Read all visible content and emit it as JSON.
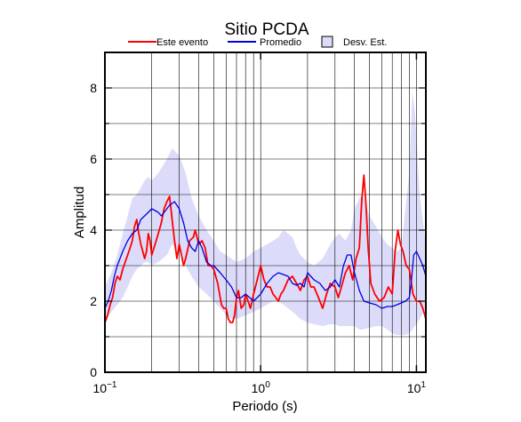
{
  "chart_data": {
    "type": "line",
    "title": "Sitio PCDA",
    "xlabel": "Periodo (s)",
    "ylabel": "Amplitud",
    "xscale": "log",
    "xlim": [
      0.1,
      11.5
    ],
    "ylim": [
      0,
      9
    ],
    "grid": true,
    "legend_position": "top",
    "x_ticks": [
      {
        "value": 0.1,
        "base": "10",
        "exp": "−1"
      },
      {
        "value": 1,
        "base": "10",
        "exp": "0"
      },
      {
        "value": 10,
        "base": "10",
        "exp": "1"
      }
    ],
    "y_ticks": [
      {
        "value": 0,
        "label": "0"
      },
      {
        "value": 2,
        "label": "2"
      },
      {
        "value": 4,
        "label": "4"
      },
      {
        "value": 6,
        "label": "6"
      },
      {
        "value": 8,
        "label": "8"
      }
    ],
    "legend": [
      {
        "label": "Este evento",
        "kind": "line",
        "color": "#ff0000"
      },
      {
        "label": "Promedio",
        "kind": "line",
        "color": "#0000dd"
      },
      {
        "label": "Desv. Est.",
        "kind": "box",
        "color": "#dcdcfa"
      }
    ],
    "band": {
      "name": "Desv. Est.",
      "color": "#dcdcfa",
      "x": [
        0.1,
        0.11,
        0.12,
        0.13,
        0.14,
        0.15,
        0.16,
        0.17,
        0.18,
        0.19,
        0.2,
        0.22,
        0.25,
        0.27,
        0.3,
        0.33,
        0.36,
        0.4,
        0.45,
        0.5,
        0.55,
        0.6,
        0.65,
        0.7,
        0.8,
        0.9,
        1.0,
        1.1,
        1.2,
        1.3,
        1.4,
        1.5,
        1.6,
        1.7,
        1.8,
        2.0,
        2.2,
        2.5,
        2.8,
        3.0,
        3.2,
        3.5,
        3.8,
        4.0,
        4.3,
        4.5,
        5.0,
        5.5,
        6.0,
        6.5,
        7.0,
        7.5,
        8.0,
        8.5,
        9.0,
        9.4,
        9.8,
        10.5,
        11.5
      ],
      "upper": [
        2.4,
        2.8,
        3.3,
        3.9,
        4.4,
        4.9,
        5.0,
        5.2,
        5.4,
        5.5,
        5.4,
        5.6,
        6.0,
        6.3,
        6.1,
        5.6,
        4.9,
        4.4,
        4.0,
        3.7,
        3.4,
        3.3,
        3.2,
        3.1,
        3.2,
        3.4,
        3.5,
        3.6,
        3.7,
        3.8,
        4.0,
        3.9,
        3.8,
        3.5,
        3.3,
        3.1,
        3.0,
        3.2,
        3.6,
        3.8,
        3.9,
        3.7,
        4.0,
        4.6,
        4.9,
        5.0,
        4.4,
        4.1,
        3.8,
        3.6,
        3.5,
        3.4,
        3.5,
        4.6,
        5.6,
        7.9,
        7.3,
        5.0,
        3.6
      ],
      "lower": [
        1.5,
        1.7,
        1.9,
        2.1,
        2.4,
        2.7,
        2.9,
        3.0,
        3.1,
        3.1,
        3.0,
        3.1,
        3.3,
        3.6,
        3.4,
        3.0,
        2.7,
        2.4,
        2.2,
        2.0,
        1.8,
        1.6,
        1.5,
        1.5,
        1.6,
        1.7,
        1.8,
        1.9,
        2.0,
        2.0,
        1.9,
        1.8,
        1.7,
        1.6,
        1.5,
        1.4,
        1.35,
        1.3,
        1.35,
        1.35,
        1.3,
        1.3,
        1.3,
        1.3,
        1.2,
        1.2,
        1.25,
        1.3,
        1.3,
        1.2,
        1.1,
        1.05,
        1.05,
        1.05,
        1.1,
        1.2,
        1.3,
        1.5,
        1.8
      ]
    },
    "series": [
      {
        "name": "Este evento",
        "color": "#ff0000",
        "x": [
          0.1,
          0.104,
          0.108,
          0.112,
          0.116,
          0.12,
          0.125,
          0.13,
          0.135,
          0.14,
          0.145,
          0.15,
          0.155,
          0.16,
          0.165,
          0.17,
          0.175,
          0.18,
          0.185,
          0.19,
          0.195,
          0.2,
          0.21,
          0.22,
          0.23,
          0.24,
          0.25,
          0.26,
          0.27,
          0.28,
          0.29,
          0.3,
          0.31,
          0.32,
          0.33,
          0.35,
          0.37,
          0.38,
          0.4,
          0.42,
          0.44,
          0.46,
          0.48,
          0.5,
          0.53,
          0.56,
          0.58,
          0.6,
          0.62,
          0.64,
          0.66,
          0.68,
          0.7,
          0.72,
          0.75,
          0.78,
          0.8,
          0.83,
          0.86,
          0.9,
          0.95,
          1.0,
          1.05,
          1.1,
          1.15,
          1.2,
          1.25,
          1.3,
          1.35,
          1.4,
          1.5,
          1.6,
          1.7,
          1.8,
          1.9,
          2.0,
          2.1,
          2.2,
          2.35,
          2.5,
          2.65,
          2.8,
          3.0,
          3.15,
          3.3,
          3.5,
          3.7,
          3.9,
          4.1,
          4.3,
          4.45,
          4.6,
          4.75,
          4.9,
          5.1,
          5.4,
          5.8,
          6.2,
          6.6,
          7.0,
          7.3,
          7.6,
          7.9,
          8.2,
          8.6,
          9.0,
          9.5,
          10.0,
          10.5,
          11.0,
          11.5
        ],
        "y": [
          1.4,
          1.6,
          1.9,
          2.1,
          2.5,
          2.7,
          2.6,
          2.9,
          3.1,
          3.3,
          3.5,
          3.7,
          4.1,
          4.3,
          3.9,
          3.6,
          3.4,
          3.2,
          3.4,
          3.9,
          3.7,
          3.3,
          3.6,
          3.9,
          4.2,
          4.6,
          4.8,
          4.95,
          4.3,
          3.7,
          3.2,
          3.6,
          3.3,
          3.0,
          3.2,
          3.7,
          3.8,
          4.0,
          3.6,
          3.7,
          3.5,
          3.0,
          3.0,
          2.9,
          2.5,
          1.9,
          1.8,
          1.8,
          1.5,
          1.4,
          1.4,
          1.6,
          2.1,
          2.3,
          1.8,
          1.9,
          2.2,
          2.0,
          1.8,
          2.2,
          2.6,
          3.0,
          2.6,
          2.4,
          2.4,
          2.2,
          2.1,
          2.0,
          2.2,
          2.3,
          2.6,
          2.7,
          2.5,
          2.3,
          2.6,
          2.7,
          2.4,
          2.4,
          2.1,
          1.8,
          2.2,
          2.5,
          2.4,
          2.1,
          2.4,
          2.8,
          3.0,
          2.6,
          3.2,
          3.5,
          4.8,
          5.55,
          4.7,
          3.5,
          2.5,
          2.2,
          2.0,
          2.1,
          2.4,
          2.2,
          3.4,
          4.0,
          3.6,
          3.4,
          3.0,
          2.9,
          2.2,
          2.0,
          2.0,
          1.8,
          1.5
        ]
      },
      {
        "name": "Promedio",
        "color": "#0000dd",
        "x": [
          0.1,
          0.105,
          0.11,
          0.115,
          0.12,
          0.125,
          0.13,
          0.14,
          0.15,
          0.16,
          0.17,
          0.18,
          0.19,
          0.2,
          0.21,
          0.22,
          0.23,
          0.24,
          0.25,
          0.26,
          0.27,
          0.28,
          0.3,
          0.32,
          0.34,
          0.36,
          0.38,
          0.4,
          0.42,
          0.45,
          0.48,
          0.5,
          0.55,
          0.6,
          0.65,
          0.7,
          0.75,
          0.8,
          0.85,
          0.9,
          0.95,
          1.0,
          1.1,
          1.2,
          1.3,
          1.4,
          1.5,
          1.6,
          1.7,
          1.8,
          1.9,
          2.0,
          2.2,
          2.4,
          2.6,
          2.8,
          3.0,
          3.2,
          3.4,
          3.6,
          3.8,
          4.0,
          4.3,
          4.6,
          5.0,
          5.5,
          6.0,
          6.5,
          7.0,
          7.5,
          8.0,
          8.5,
          9.0,
          9.3,
          9.6,
          10.0,
          10.5,
          11.0,
          11.5
        ],
        "y": [
          1.8,
          2.0,
          2.3,
          2.7,
          3.0,
          3.2,
          3.4,
          3.7,
          3.9,
          4.0,
          4.3,
          4.4,
          4.5,
          4.6,
          4.55,
          4.5,
          4.4,
          4.5,
          4.6,
          4.7,
          4.75,
          4.8,
          4.6,
          4.2,
          3.7,
          3.5,
          3.4,
          3.7,
          3.5,
          3.1,
          3.0,
          3.0,
          2.8,
          2.6,
          2.4,
          2.1,
          2.1,
          2.2,
          2.1,
          2.0,
          2.1,
          2.2,
          2.5,
          2.7,
          2.8,
          2.75,
          2.7,
          2.5,
          2.45,
          2.5,
          2.4,
          2.8,
          2.6,
          2.5,
          2.3,
          2.4,
          2.6,
          2.4,
          3.0,
          3.3,
          3.3,
          2.8,
          2.3,
          2.0,
          1.95,
          1.9,
          1.8,
          1.85,
          1.85,
          1.9,
          1.95,
          2.0,
          2.1,
          2.6,
          3.3,
          3.4,
          3.2,
          3.0,
          2.7
        ]
      }
    ]
  }
}
